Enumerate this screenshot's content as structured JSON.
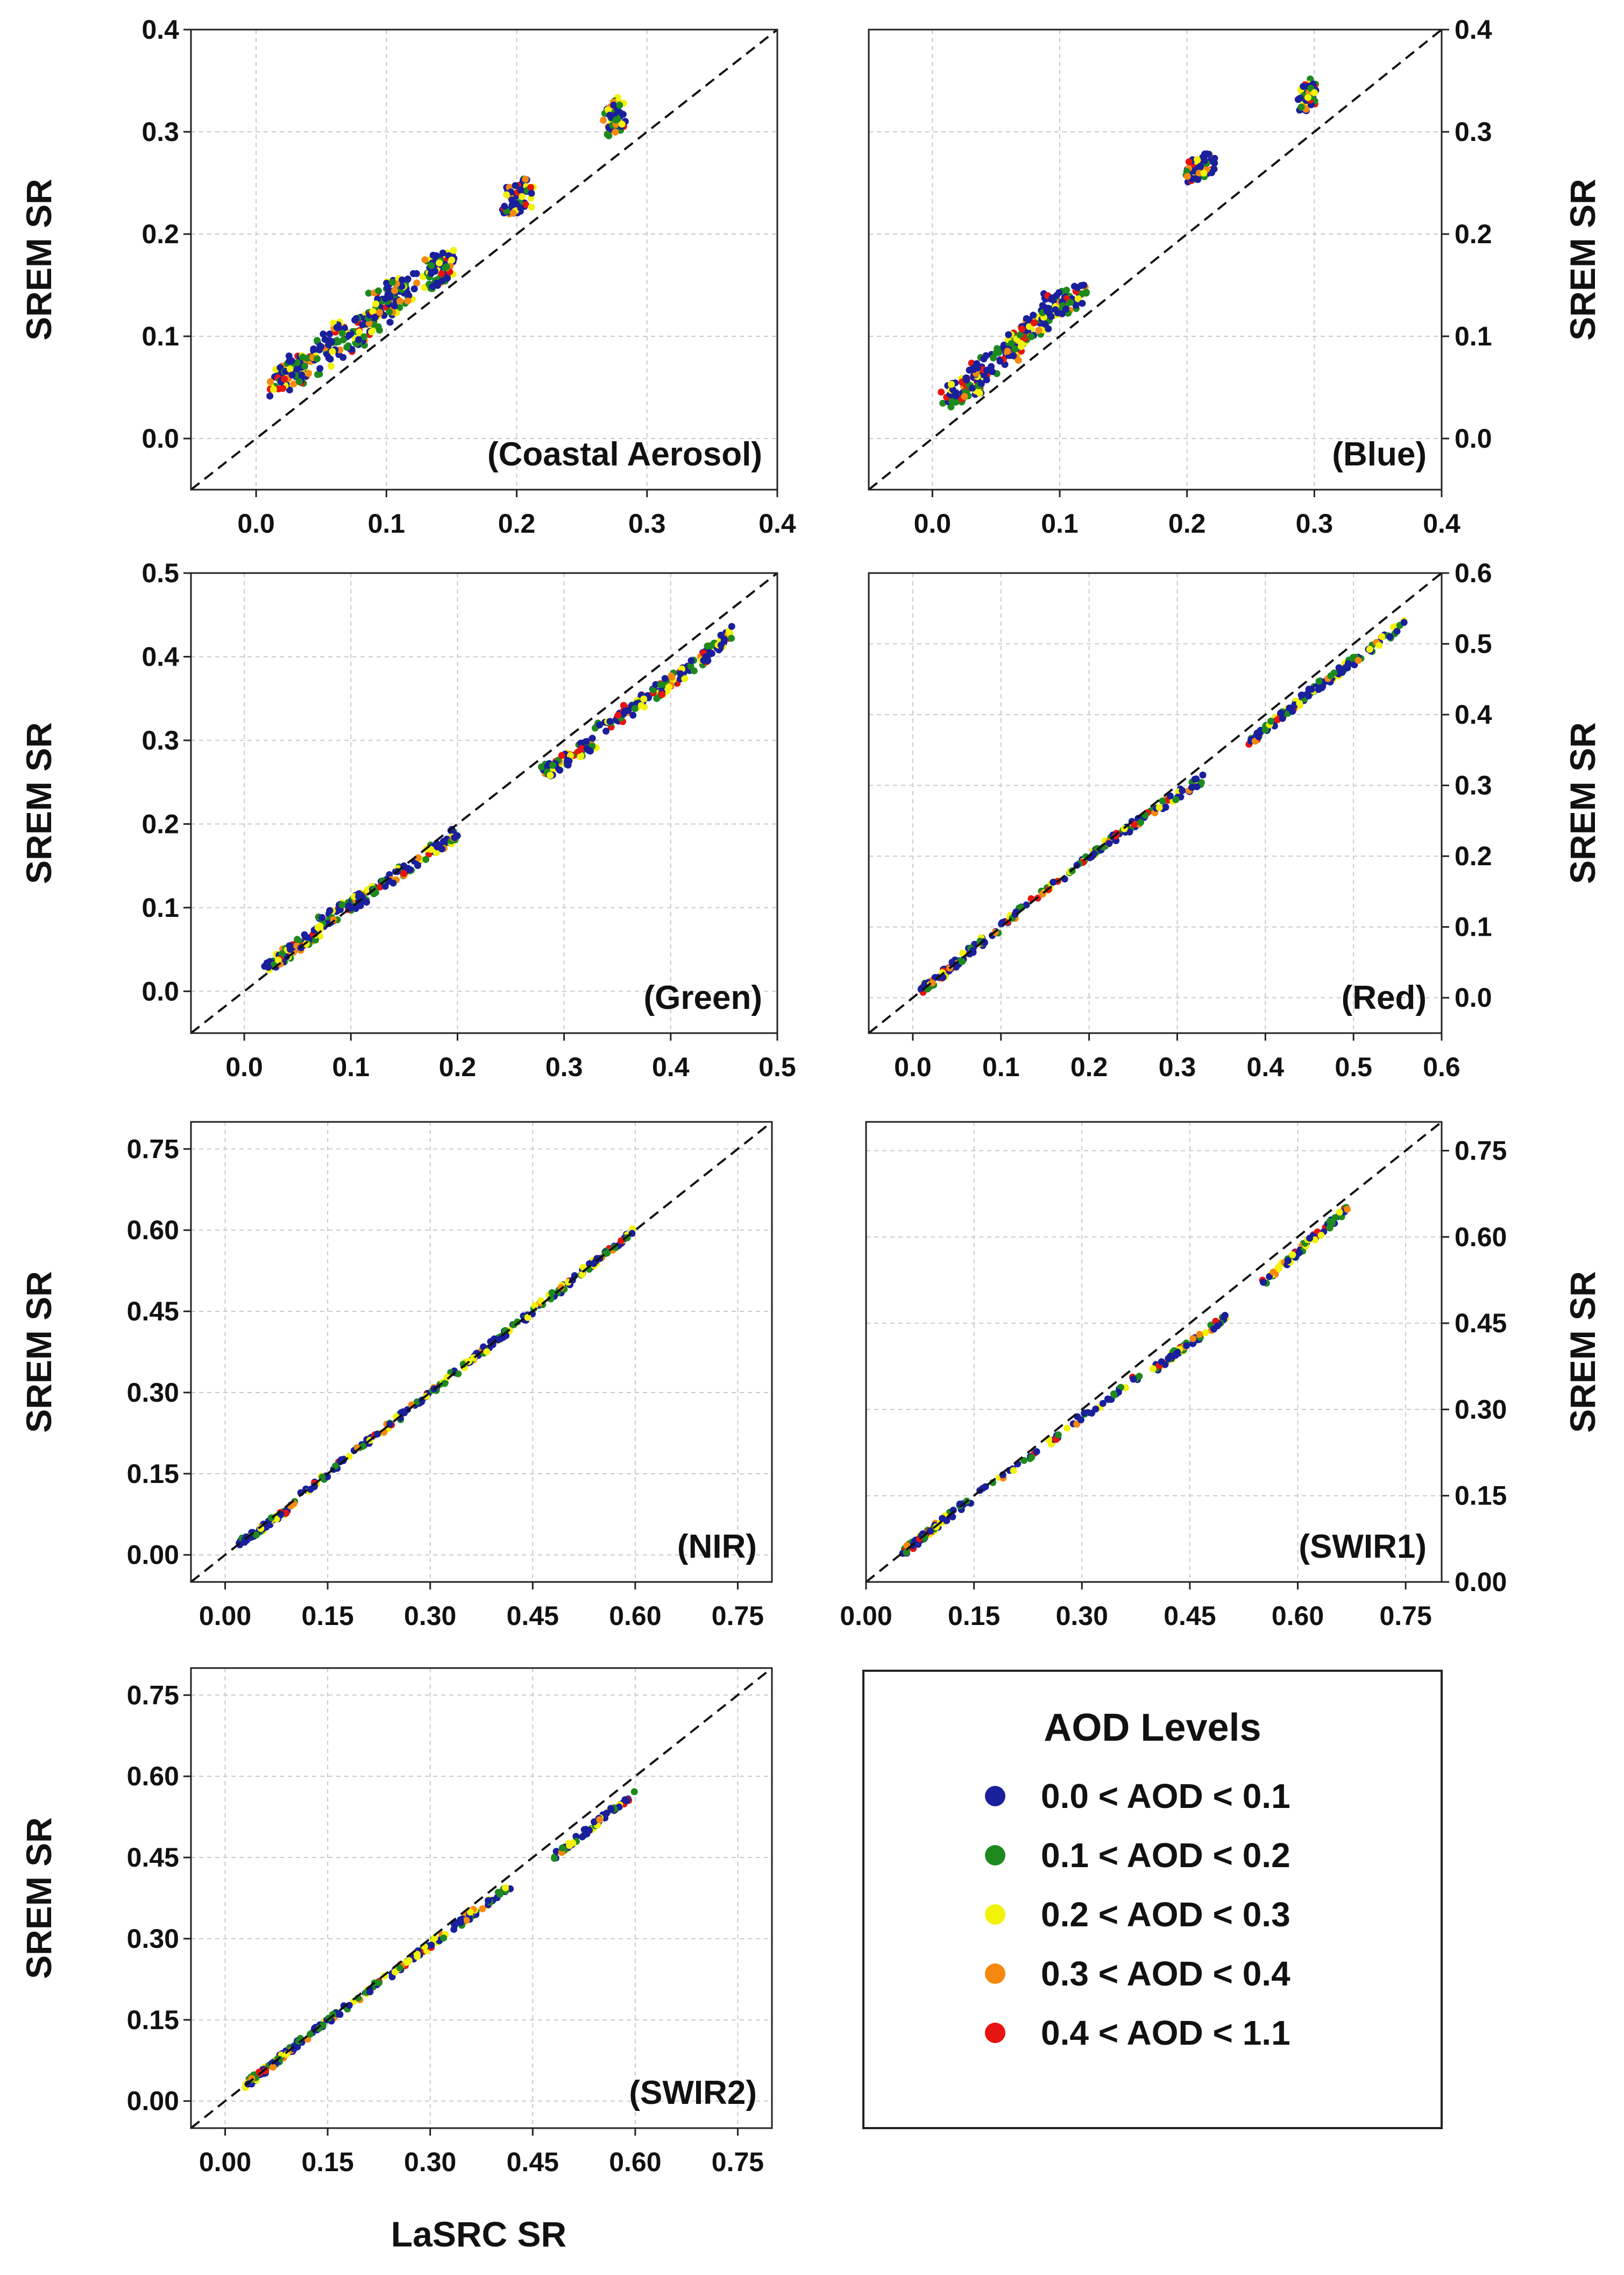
{
  "figure": {
    "x_axis_title": "LaSRC SR",
    "y_axis_title": "SREM SR"
  },
  "legend": {
    "title": "AOD Levels",
    "items": [
      {
        "label": "0.0 < AOD < 0.1",
        "color": "#1a1f9c"
      },
      {
        "label": "0.1 < AOD < 0.2",
        "color": "#1e8a1e"
      },
      {
        "label": "0.2 < AOD < 0.3",
        "color": "#f2f20a"
      },
      {
        "label": "0.3 < AOD < 0.4",
        "color": "#f5890f"
      },
      {
        "label": "0.4 < AOD < 1.1",
        "color": "#e8140f"
      }
    ]
  },
  "chart_data": [
    {
      "type": "scatter",
      "title": "(Coastal Aerosol)",
      "xlabel": "LaSRC SR",
      "ylabel": "SREM SR",
      "xlim": [
        -0.05,
        0.4
      ],
      "ylim": [
        -0.05,
        0.4
      ],
      "xticks": [
        "0.0",
        "0.1",
        "0.2",
        "0.3",
        "0.4"
      ],
      "yticks": [
        "0.0",
        "0.1",
        "0.2",
        "0.3",
        "0.4"
      ],
      "y_axis_side": "left",
      "reference_line": "1:1 dashed",
      "grid": true,
      "clusters": [
        [
          0.01,
          0.05,
          0.05,
          0.08
        ],
        [
          0.02,
          0.06,
          0.09,
          0.11
        ],
        [
          0.05,
          0.09,
          0.11,
          0.13
        ],
        [
          0.09,
          0.13,
          0.12,
          0.15
        ],
        [
          0.13,
          0.16,
          0.15,
          0.17
        ],
        [
          0.19,
          0.23,
          0.21,
          0.24
        ],
        [
          0.27,
          0.31,
          0.28,
          0.32
        ]
      ],
      "spread": 0.015
    },
    {
      "type": "scatter",
      "title": "(Blue)",
      "xlabel": "LaSRC SR",
      "ylabel": "SREM SR",
      "xlim": [
        -0.05,
        0.4
      ],
      "ylim": [
        -0.05,
        0.4
      ],
      "xticks": [
        "0.0",
        "0.1",
        "0.2",
        "0.3",
        "0.4"
      ],
      "yticks": [
        "0.0",
        "0.1",
        "0.2",
        "0.3",
        "0.4"
      ],
      "y_axis_side": "right",
      "reference_line": "1:1 dashed",
      "grid": true,
      "clusters": [
        [
          0.01,
          0.04,
          0.04,
          0.06
        ],
        [
          0.03,
          0.06,
          0.07,
          0.09
        ],
        [
          0.06,
          0.09,
          0.09,
          0.12
        ],
        [
          0.09,
          0.13,
          0.12,
          0.14
        ],
        [
          0.2,
          0.26,
          0.22,
          0.27
        ],
        [
          0.29,
          0.33,
          0.3,
          0.34
        ]
      ],
      "spread": 0.012
    },
    {
      "type": "scatter",
      "title": "(Green)",
      "xlabel": "LaSRC SR",
      "ylabel": "SREM SR",
      "xlim": [
        -0.05,
        0.5
      ],
      "ylim": [
        -0.05,
        0.5
      ],
      "xticks": [
        "0.0",
        "0.1",
        "0.2",
        "0.3",
        "0.4",
        "0.5"
      ],
      "yticks": [
        "0.0",
        "0.1",
        "0.2",
        "0.3",
        "0.4",
        "0.5"
      ],
      "y_axis_side": "left",
      "reference_line": "1:1 dashed",
      "grid": true,
      "clusters": [
        [
          0.02,
          0.03,
          0.07,
          0.07
        ],
        [
          0.07,
          0.08,
          0.12,
          0.12
        ],
        [
          0.12,
          0.12,
          0.2,
          0.19
        ],
        [
          0.28,
          0.26,
          0.33,
          0.3
        ],
        [
          0.33,
          0.31,
          0.4,
          0.37
        ],
        [
          0.4,
          0.37,
          0.46,
          0.43
        ]
      ],
      "spread": 0.008
    },
    {
      "type": "scatter",
      "title": "(Red)",
      "xlabel": "LaSRC SR",
      "ylabel": "SREM SR",
      "xlim": [
        -0.05,
        0.6
      ],
      "ylim": [
        -0.05,
        0.6
      ],
      "xticks": [
        "0.0",
        "0.1",
        "0.2",
        "0.3",
        "0.4",
        "0.5",
        "0.6"
      ],
      "yticks": [
        "0.0",
        "0.1",
        "0.2",
        "0.3",
        "0.4",
        "0.5",
        "0.6"
      ],
      "y_axis_side": "right",
      "reference_line": "1:1 dashed",
      "grid": true,
      "clusters": [
        [
          0.01,
          0.01,
          0.08,
          0.08
        ],
        [
          0.08,
          0.08,
          0.22,
          0.22
        ],
        [
          0.22,
          0.22,
          0.33,
          0.31
        ],
        [
          0.38,
          0.36,
          0.46,
          0.44
        ],
        [
          0.46,
          0.44,
          0.56,
          0.53
        ]
      ],
      "spread": 0.006
    },
    {
      "type": "scatter",
      "title": "(NIR)",
      "xlabel": "LaSRC SR",
      "ylabel": "SREM SR",
      "xlim": [
        -0.05,
        0.8
      ],
      "ylim": [
        -0.05,
        0.8
      ],
      "xticks": [
        "0.00",
        "0.15",
        "0.30",
        "0.45",
        "0.60",
        "0.75"
      ],
      "yticks": [
        "0.00",
        "0.15",
        "0.30",
        "0.45",
        "0.60",
        "0.75"
      ],
      "y_axis_side": "left",
      "reference_line": "1:1 dashed",
      "grid": true,
      "clusters": [
        [
          0.02,
          0.02,
          0.1,
          0.09
        ],
        [
          0.1,
          0.1,
          0.3,
          0.3
        ],
        [
          0.3,
          0.3,
          0.45,
          0.45
        ],
        [
          0.45,
          0.45,
          0.6,
          0.6
        ]
      ],
      "spread": 0.006
    },
    {
      "type": "scatter",
      "title": "(SWIR1)",
      "xlabel": "LaSRC SR",
      "ylabel": "SREM SR",
      "xlim": [
        0.0,
        0.8
      ],
      "ylim": [
        0.0,
        0.8
      ],
      "xticks": [
        "0.00",
        "0.15",
        "0.30",
        "0.45",
        "0.60",
        "0.75"
      ],
      "yticks": [
        "0.00",
        "0.15",
        "0.30",
        "0.45",
        "0.60",
        "0.75"
      ],
      "y_axis_side": "right",
      "reference_line": "1:1 dashed",
      "grid": true,
      "clusters": [
        [
          0.05,
          0.05,
          0.1,
          0.1
        ],
        [
          0.1,
          0.1,
          0.38,
          0.36
        ],
        [
          0.4,
          0.37,
          0.5,
          0.46
        ],
        [
          0.55,
          0.52,
          0.67,
          0.65
        ]
      ],
      "spread": 0.006
    },
    {
      "type": "scatter",
      "title": "(SWIR2)",
      "xlabel": "LaSRC SR",
      "ylabel": "SREM SR",
      "xlim": [
        -0.05,
        0.8
      ],
      "ylim": [
        -0.05,
        0.8
      ],
      "xticks": [
        "0.00",
        "0.15",
        "0.30",
        "0.45",
        "0.60",
        "0.75"
      ],
      "yticks": [
        "0.00",
        "0.15",
        "0.30",
        "0.45",
        "0.60",
        "0.75"
      ],
      "y_axis_side": "left",
      "reference_line": "1:1 dashed",
      "grid": true,
      "clusters": [
        [
          0.03,
          0.03,
          0.1,
          0.1
        ],
        [
          0.1,
          0.1,
          0.28,
          0.27
        ],
        [
          0.28,
          0.27,
          0.42,
          0.4
        ],
        [
          0.48,
          0.45,
          0.6,
          0.57
        ]
      ],
      "spread": 0.006
    }
  ]
}
